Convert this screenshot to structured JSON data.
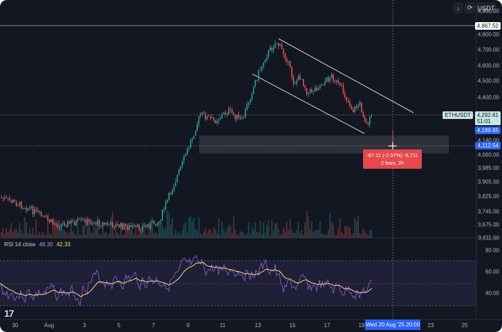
{
  "toolbar": {
    "download_icon": "download-icon",
    "refresh_icon": "refresh-icon",
    "currency": "USDT"
  },
  "symbol_label": "ETHUSDT",
  "price": {
    "high_line": "4,867.52",
    "current": "4,292.61",
    "countdown": "51:01",
    "level_a": "4,199.65",
    "level_b": "4,112.54"
  },
  "y_axis": [
    "4,900.00",
    "4,800.00",
    "4,700.00",
    "4,600.00",
    "4,500.00",
    "4,400.00",
    "4,140.00",
    "4,060.00",
    "3,985.00",
    "3,905.00",
    "3,825.00",
    "3,745.00",
    "3,675.00",
    "3,611.00"
  ],
  "rsi_axis": [
    "80.00",
    "60.00",
    "40.00"
  ],
  "x_axis": [
    "30",
    "Aug",
    "3",
    "5",
    "7",
    "9",
    "11",
    "13",
    "15",
    "17",
    "19",
    "23",
    "25"
  ],
  "x_highlight": "Wed 20 Aug '25   20:00",
  "measure": {
    "line1": "-87.11 (-2.07%) -8,711",
    "line2": "2 bars, 2h"
  },
  "rsi_legend": {
    "label": "RSI 14 close",
    "rsi_value": "48.30",
    "ma_value": "42.33"
  },
  "logo_text": "17",
  "colors": {
    "background": "#131722",
    "up": "#26a69a",
    "down": "#ef5350",
    "rsi_line": "#7e57c2",
    "rsi_ma": "#f7e07a",
    "accent": "#2962ff",
    "measure": "#e5484d"
  }
}
